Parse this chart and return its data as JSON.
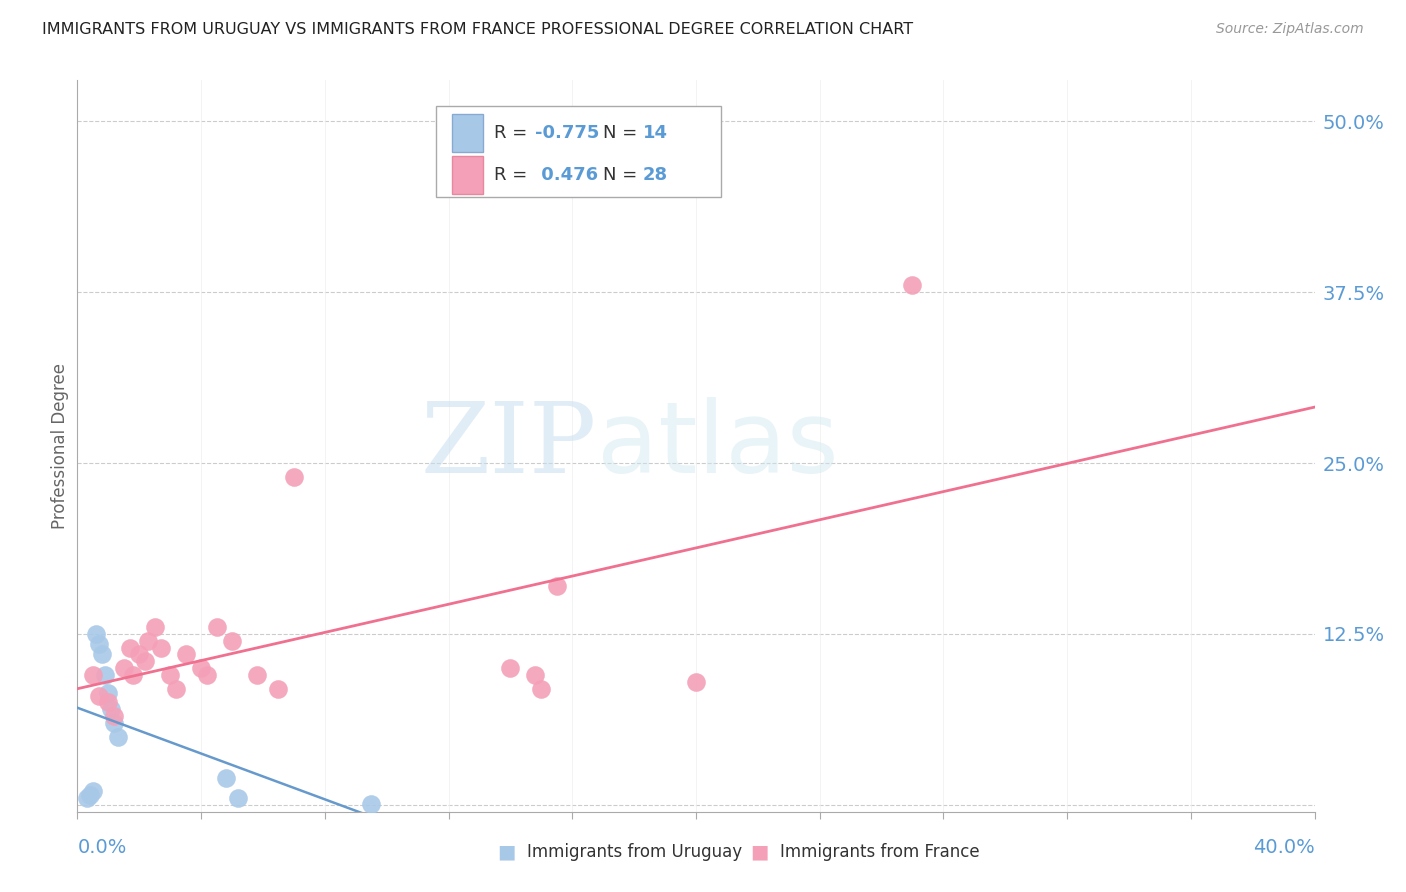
{
  "title": "IMMIGRANTS FROM URUGUAY VS IMMIGRANTS FROM FRANCE PROFESSIONAL DEGREE CORRELATION CHART",
  "source": "Source: ZipAtlas.com",
  "ylabel": "Professional Degree",
  "xlim": [
    0.0,
    0.4
  ],
  "ylim": [
    -0.005,
    0.53
  ],
  "watermark_zip": "ZIP",
  "watermark_atlas": "atlas",
  "legend_r_uruguay": "-0.775",
  "legend_n_uruguay": "14",
  "legend_r_france": "0.476",
  "legend_n_france": "28",
  "uruguay_color": "#a8c8e8",
  "france_color": "#f4a0b8",
  "uruguay_line_color": "#6699cc",
  "france_line_color": "#f07090",
  "background_color": "#ffffff",
  "grid_color": "#cccccc",
  "tick_color": "#5b9bd5",
  "title_color": "#222222",
  "source_color": "#999999",
  "ylabel_color": "#666666",
  "legend_text_color": "#333333",
  "ytick_vals": [
    0.0,
    0.125,
    0.25,
    0.375,
    0.5
  ],
  "ytick_labels": [
    "",
    "12.5%",
    "25.0%",
    "37.5%",
    "50.0%"
  ],
  "xtick_vals": [
    0.0,
    0.04,
    0.08,
    0.12,
    0.16,
    0.2,
    0.24,
    0.28,
    0.32,
    0.36,
    0.4
  ],
  "uruguay_x": [
    0.003,
    0.004,
    0.005,
    0.006,
    0.007,
    0.008,
    0.009,
    0.01,
    0.011,
    0.012,
    0.013,
    0.048,
    0.052,
    0.095
  ],
  "uruguay_y": [
    0.005,
    0.007,
    0.01,
    0.125,
    0.118,
    0.11,
    0.095,
    0.082,
    0.07,
    0.06,
    0.05,
    0.02,
    0.005,
    0.001
  ],
  "france_x": [
    0.005,
    0.007,
    0.01,
    0.012,
    0.015,
    0.017,
    0.018,
    0.02,
    0.022,
    0.023,
    0.025,
    0.027,
    0.03,
    0.032,
    0.035,
    0.04,
    0.042,
    0.045,
    0.05,
    0.058,
    0.065,
    0.07,
    0.14,
    0.148,
    0.15,
    0.155,
    0.2,
    0.27
  ],
  "france_y": [
    0.095,
    0.08,
    0.075,
    0.065,
    0.1,
    0.115,
    0.095,
    0.11,
    0.105,
    0.12,
    0.13,
    0.115,
    0.095,
    0.085,
    0.11,
    0.1,
    0.095,
    0.13,
    0.12,
    0.095,
    0.085,
    0.24,
    0.1,
    0.095,
    0.085,
    0.16,
    0.09,
    0.38
  ]
}
